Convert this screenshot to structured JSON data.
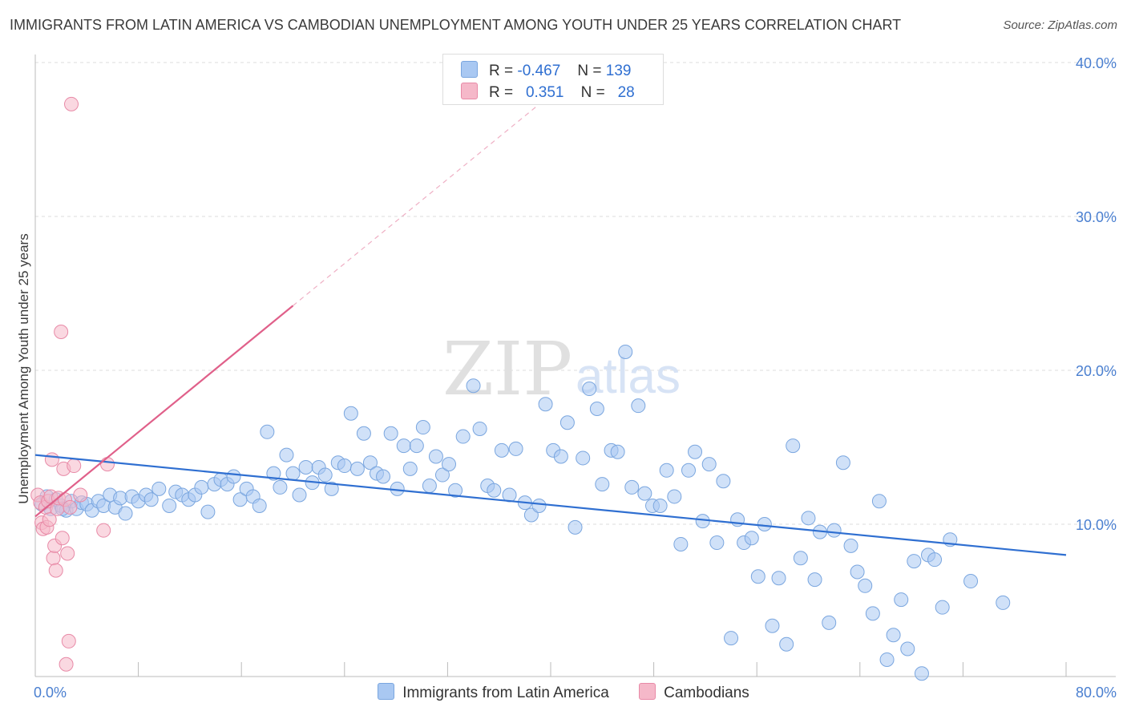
{
  "chart_data": {
    "type": "scatter",
    "title": "IMMIGRANTS FROM LATIN AMERICA VS CAMBODIAN UNEMPLOYMENT AMONG YOUTH UNDER 25 YEARS CORRELATION CHART",
    "source": "Source: ZipAtlas.com",
    "xlabel": "",
    "ylabel": "Unemployment Among Youth under 25 years",
    "xlim": [
      0,
      80
    ],
    "ylim": [
      0,
      42
    ],
    "x_tick_labels": [
      {
        "value": 0,
        "label": "0.0%"
      },
      {
        "value": 80,
        "label": "80.0%"
      }
    ],
    "y_tick_labels": [
      {
        "value": 10,
        "label": "10.0%"
      },
      {
        "value": 20,
        "label": "20.0%"
      },
      {
        "value": 30,
        "label": "30.0%"
      },
      {
        "value": 40,
        "label": "40.0%"
      }
    ],
    "watermark": {
      "part1": "ZIP",
      "part2": "atlas"
    },
    "legend_stats": [
      {
        "r_label": "R =",
        "r_value": "-0.467",
        "n_label": "N =",
        "n_value": "139"
      },
      {
        "r_label": "R =",
        "r_value": "0.351",
        "n_label": "N =",
        "n_value": "28"
      }
    ],
    "series": [
      {
        "name": "Immigrants from Latin America",
        "color": "#a9c8f2",
        "stroke": "#7aa6df",
        "line_color": "#2f6fd1",
        "trend": {
          "x1": 0,
          "y1": 14.5,
          "x2": 80,
          "y2": 8.0
        },
        "points": [
          [
            0.5,
            11.3
          ],
          [
            0.9,
            11.8
          ],
          [
            1.2,
            11.0
          ],
          [
            1.6,
            11.6
          ],
          [
            2.0,
            11.2
          ],
          [
            2.4,
            10.9
          ],
          [
            2.8,
            11.5
          ],
          [
            3.2,
            11.0
          ],
          [
            3.6,
            11.4
          ],
          [
            4.0,
            11.3
          ],
          [
            4.4,
            10.9
          ],
          [
            4.9,
            11.5
          ],
          [
            5.3,
            11.2
          ],
          [
            5.8,
            11.9
          ],
          [
            6.2,
            11.1
          ],
          [
            6.6,
            11.7
          ],
          [
            7.0,
            10.7
          ],
          [
            7.5,
            11.8
          ],
          [
            8.0,
            11.5
          ],
          [
            8.6,
            11.9
          ],
          [
            9.0,
            11.6
          ],
          [
            9.6,
            12.3
          ],
          [
            10.4,
            11.2
          ],
          [
            10.9,
            12.1
          ],
          [
            11.4,
            11.9
          ],
          [
            11.9,
            11.6
          ],
          [
            12.4,
            11.9
          ],
          [
            12.9,
            12.4
          ],
          [
            13.4,
            10.8
          ],
          [
            13.9,
            12.6
          ],
          [
            14.4,
            12.9
          ],
          [
            14.9,
            12.6
          ],
          [
            15.4,
            13.1
          ],
          [
            15.9,
            11.6
          ],
          [
            16.4,
            12.3
          ],
          [
            16.9,
            11.8
          ],
          [
            17.4,
            11.2
          ],
          [
            18.0,
            16.0
          ],
          [
            18.5,
            13.3
          ],
          [
            19.0,
            12.4
          ],
          [
            19.5,
            14.5
          ],
          [
            20.0,
            13.3
          ],
          [
            20.5,
            11.9
          ],
          [
            21.0,
            13.7
          ],
          [
            21.5,
            12.7
          ],
          [
            22.0,
            13.7
          ],
          [
            22.5,
            13.2
          ],
          [
            23.0,
            12.3
          ],
          [
            23.5,
            14.0
          ],
          [
            24.0,
            13.8
          ],
          [
            24.5,
            17.2
          ],
          [
            25.0,
            13.6
          ],
          [
            25.5,
            15.9
          ],
          [
            26.0,
            14.0
          ],
          [
            26.5,
            13.3
          ],
          [
            27.0,
            13.1
          ],
          [
            27.6,
            15.9
          ],
          [
            28.1,
            12.3
          ],
          [
            28.6,
            15.1
          ],
          [
            29.1,
            13.6
          ],
          [
            29.6,
            15.1
          ],
          [
            30.1,
            16.3
          ],
          [
            30.6,
            12.5
          ],
          [
            31.1,
            14.4
          ],
          [
            31.6,
            13.2
          ],
          [
            32.1,
            13.9
          ],
          [
            32.6,
            12.2
          ],
          [
            33.2,
            15.7
          ],
          [
            34.0,
            19.0
          ],
          [
            34.5,
            16.2
          ],
          [
            35.1,
            12.5
          ],
          [
            35.6,
            12.2
          ],
          [
            36.2,
            14.8
          ],
          [
            36.8,
            11.9
          ],
          [
            37.3,
            14.9
          ],
          [
            38.0,
            11.4
          ],
          [
            38.5,
            10.6
          ],
          [
            39.1,
            11.2
          ],
          [
            39.6,
            17.8
          ],
          [
            40.2,
            14.8
          ],
          [
            40.8,
            14.4
          ],
          [
            41.3,
            16.6
          ],
          [
            41.9,
            9.8
          ],
          [
            42.5,
            14.3
          ],
          [
            43.0,
            18.8
          ],
          [
            43.6,
            17.5
          ],
          [
            44.0,
            12.6
          ],
          [
            44.7,
            14.8
          ],
          [
            45.2,
            14.7
          ],
          [
            45.8,
            21.2
          ],
          [
            46.3,
            12.4
          ],
          [
            46.8,
            17.7
          ],
          [
            47.3,
            12.0
          ],
          [
            47.9,
            11.2
          ],
          [
            48.5,
            11.2
          ],
          [
            49.0,
            13.5
          ],
          [
            49.6,
            11.8
          ],
          [
            50.1,
            8.7
          ],
          [
            50.7,
            13.5
          ],
          [
            51.2,
            14.7
          ],
          [
            51.8,
            10.2
          ],
          [
            52.3,
            13.9
          ],
          [
            52.9,
            8.8
          ],
          [
            53.4,
            12.8
          ],
          [
            54.0,
            2.6
          ],
          [
            54.5,
            10.3
          ],
          [
            55.0,
            8.8
          ],
          [
            55.6,
            9.1
          ],
          [
            56.1,
            6.6
          ],
          [
            56.6,
            10.0
          ],
          [
            57.2,
            3.4
          ],
          [
            57.7,
            6.5
          ],
          [
            58.3,
            2.2
          ],
          [
            58.8,
            15.1
          ],
          [
            59.4,
            7.8
          ],
          [
            60.0,
            10.4
          ],
          [
            60.5,
            6.4
          ],
          [
            60.9,
            9.5
          ],
          [
            61.6,
            3.6
          ],
          [
            62.0,
            9.6
          ],
          [
            62.7,
            14.0
          ],
          [
            63.3,
            8.6
          ],
          [
            63.8,
            6.9
          ],
          [
            64.4,
            6.0
          ],
          [
            65.0,
            4.2
          ],
          [
            65.5,
            11.5
          ],
          [
            66.1,
            1.2
          ],
          [
            66.6,
            2.8
          ],
          [
            67.2,
            5.1
          ],
          [
            67.7,
            1.9
          ],
          [
            68.2,
            7.6
          ],
          [
            68.8,
            0.3
          ],
          [
            69.3,
            8.0
          ],
          [
            69.8,
            7.7
          ],
          [
            70.4,
            4.6
          ],
          [
            71.0,
            9.0
          ],
          [
            72.6,
            6.3
          ],
          [
            75.1,
            4.9
          ],
          [
            2.1,
            11.0
          ]
        ]
      },
      {
        "name": "Cambodians",
        "color": "#f5b8c9",
        "stroke": "#e88aa7",
        "line_color": "#e0608a",
        "trend": {
          "x1": 0.0,
          "y1": 10.5,
          "x2": 20.0,
          "y2": 24.2
        },
        "trend_dash": {
          "x1": 20.0,
          "y1": 24.2,
          "x2": 40.0,
          "y2": 37.9
        },
        "points": [
          [
            0.2,
            11.9
          ],
          [
            0.4,
            11.4
          ],
          [
            0.5,
            10.1
          ],
          [
            0.6,
            9.7
          ],
          [
            0.8,
            11.1
          ],
          [
            0.9,
            9.8
          ],
          [
            1.0,
            11.5
          ],
          [
            1.1,
            10.3
          ],
          [
            1.2,
            11.8
          ],
          [
            1.3,
            14.2
          ],
          [
            1.4,
            7.8
          ],
          [
            1.5,
            8.6
          ],
          [
            1.6,
            7.0
          ],
          [
            1.7,
            11.0
          ],
          [
            1.8,
            11.7
          ],
          [
            2.0,
            22.5
          ],
          [
            2.1,
            9.1
          ],
          [
            2.2,
            13.6
          ],
          [
            2.3,
            11.6
          ],
          [
            2.4,
            0.9
          ],
          [
            2.5,
            8.1
          ],
          [
            2.6,
            2.4
          ],
          [
            2.7,
            11.1
          ],
          [
            2.8,
            37.3
          ],
          [
            3.0,
            13.8
          ],
          [
            3.5,
            11.9
          ],
          [
            5.3,
            9.6
          ],
          [
            5.6,
            13.9
          ]
        ]
      }
    ]
  },
  "legend": {
    "items": [
      {
        "label": "Immigrants from Latin America",
        "color": "#a9c8f2",
        "border": "#7aa6df"
      },
      {
        "label": "Cambodians",
        "color": "#f5b8c9",
        "border": "#e88aa7"
      }
    ]
  }
}
